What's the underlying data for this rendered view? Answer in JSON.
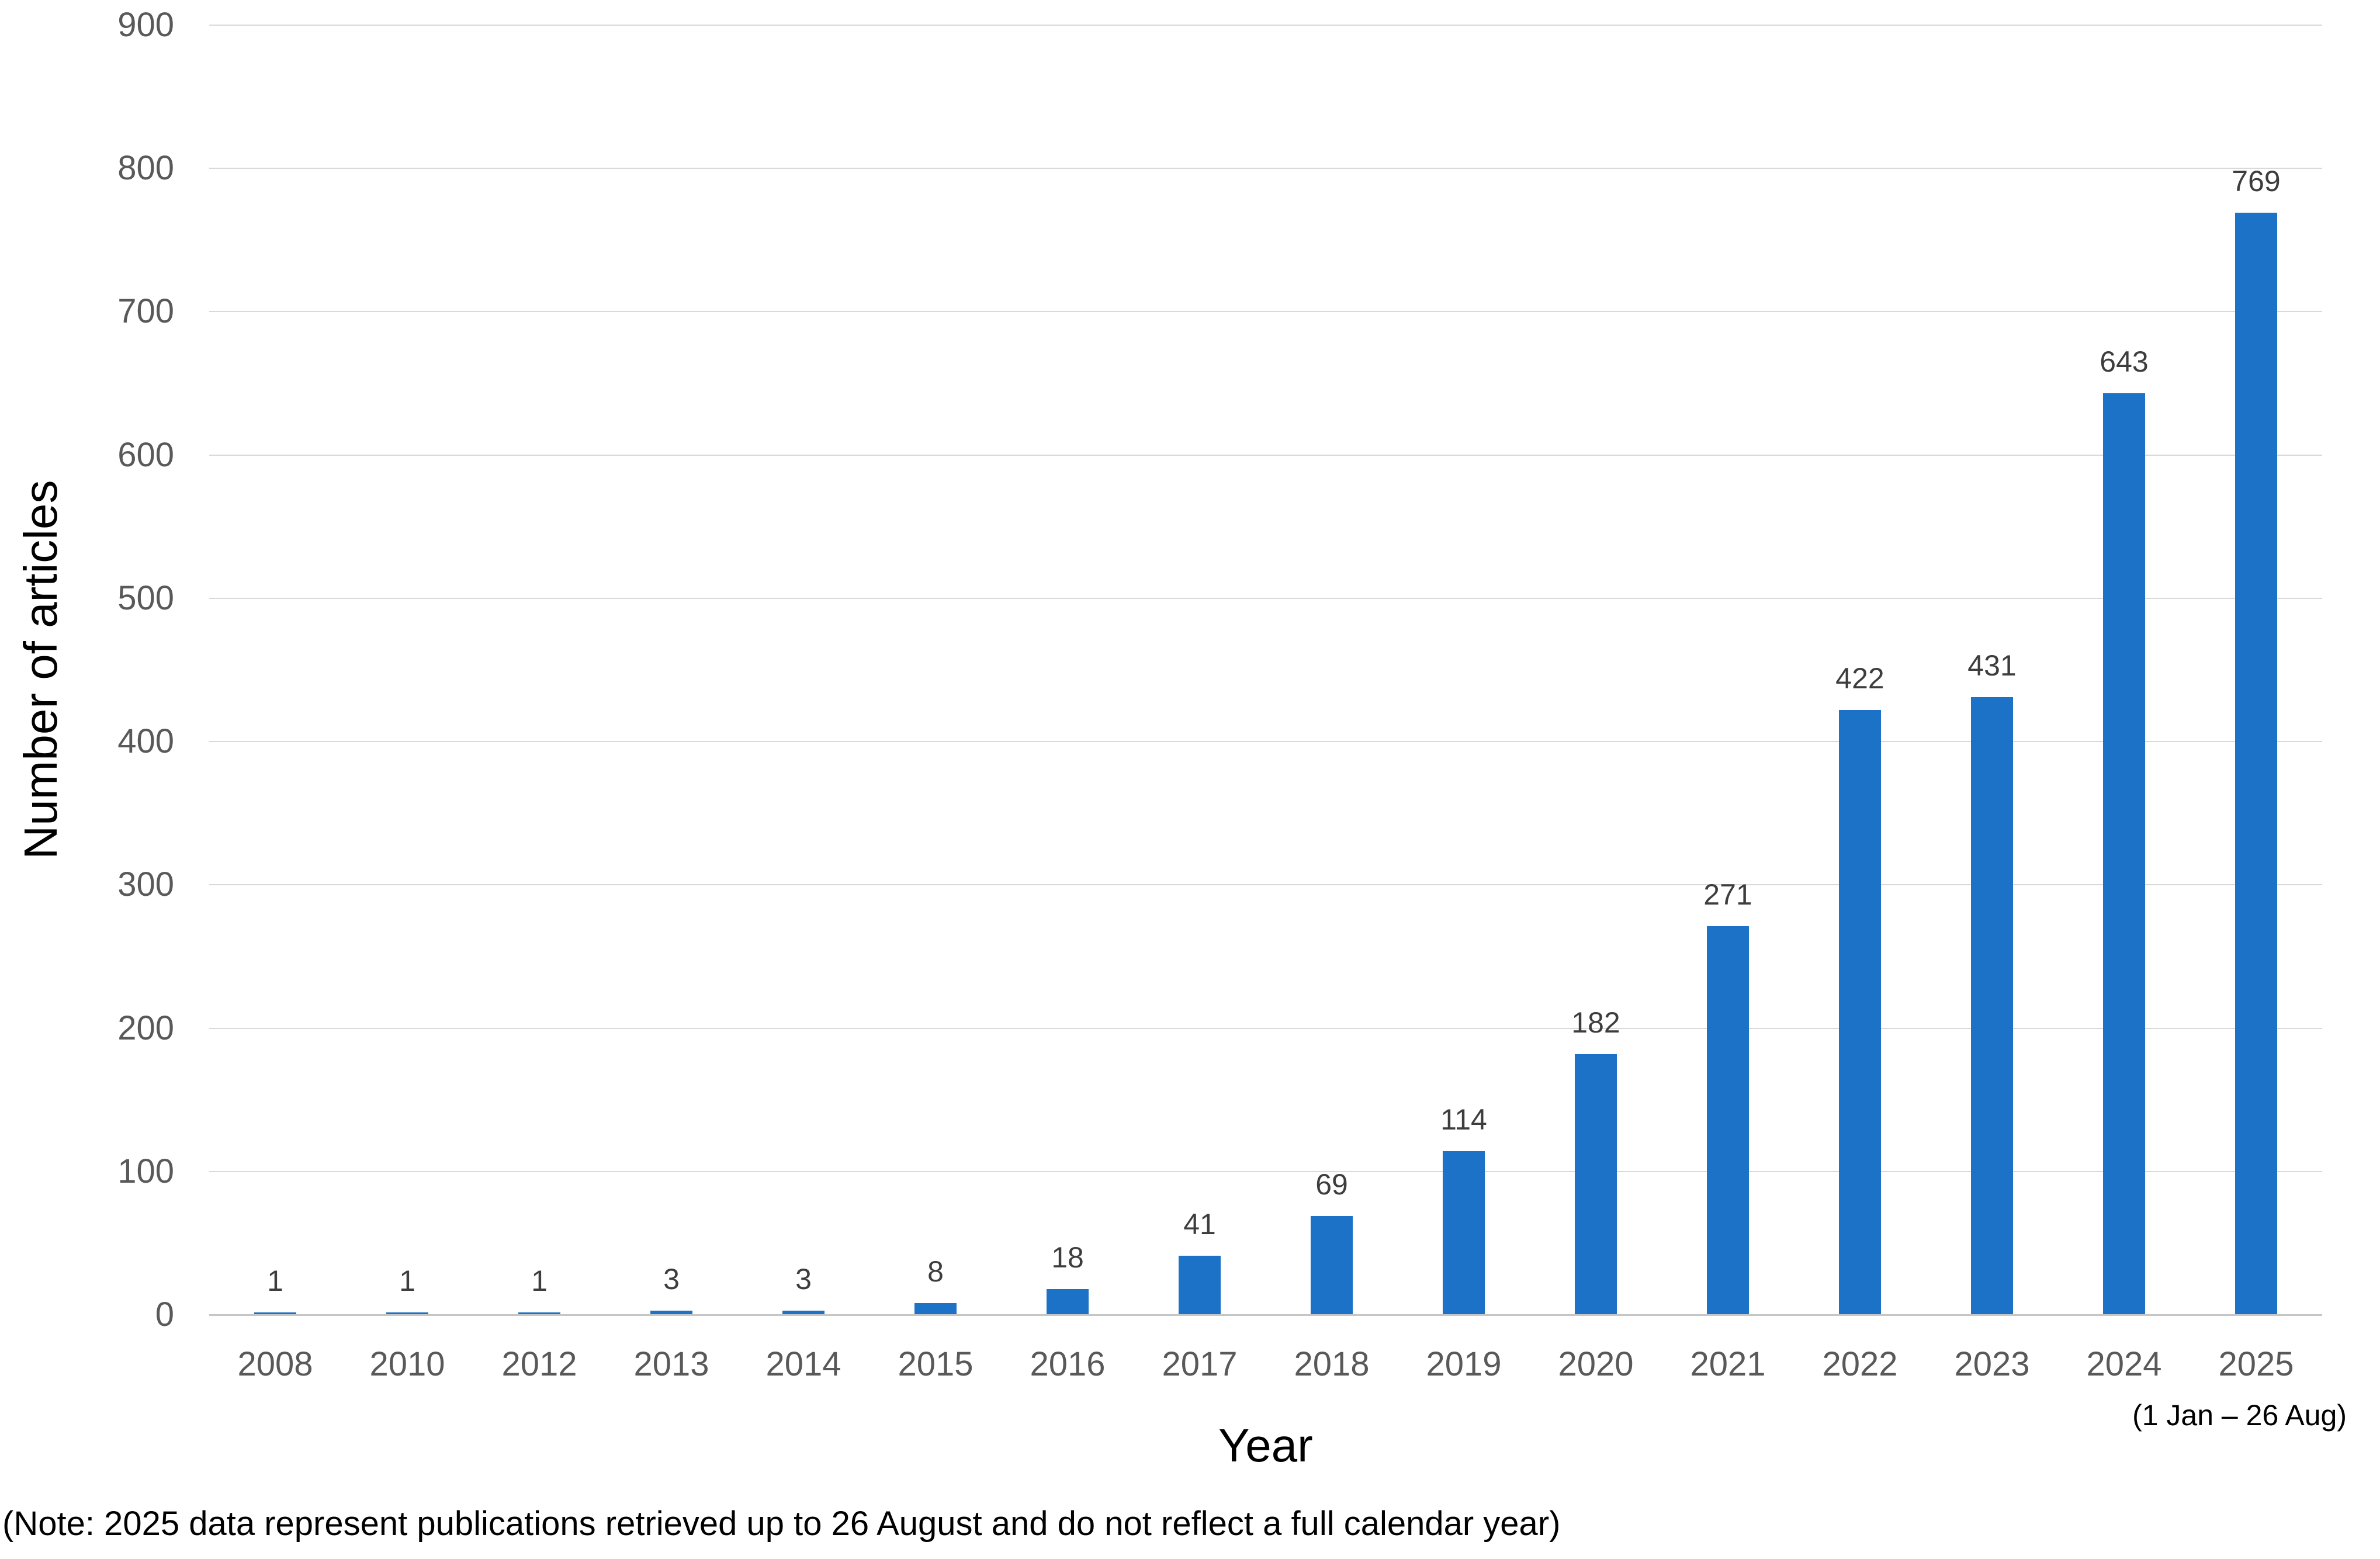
{
  "chart_data": {
    "type": "bar",
    "title": "",
    "xlabel": "Year",
    "ylabel": "Number of articles",
    "categories": [
      "2008",
      "2010",
      "2012",
      "2013",
      "2014",
      "2015",
      "2016",
      "2017",
      "2018",
      "2019",
      "2020",
      "2021",
      "2022",
      "2023",
      "2024",
      "2025"
    ],
    "values": [
      1,
      1,
      1,
      3,
      3,
      8,
      18,
      41,
      69,
      114,
      182,
      271,
      422,
      431,
      643,
      769
    ],
    "data_labels_shown": true,
    "yticks": [
      0,
      100,
      200,
      300,
      400,
      500,
      600,
      700,
      800,
      900
    ],
    "ylim": [
      0,
      900
    ],
    "grid": "horizontal",
    "legend": "none",
    "x_sublabel": "(1 Jan – 26 Aug)",
    "x_sublabel_for": "2025",
    "bar_color": "#1b72c6",
    "tick_label_color": "#595959",
    "data_label_color": "#3d3d3d",
    "gridline_color": "#d9d9d9",
    "axis_line_color": "#c6c6c6"
  },
  "footnote": "(Note: 2025 data represent publications retrieved up to 26 August and do not reflect a full calendar year)"
}
